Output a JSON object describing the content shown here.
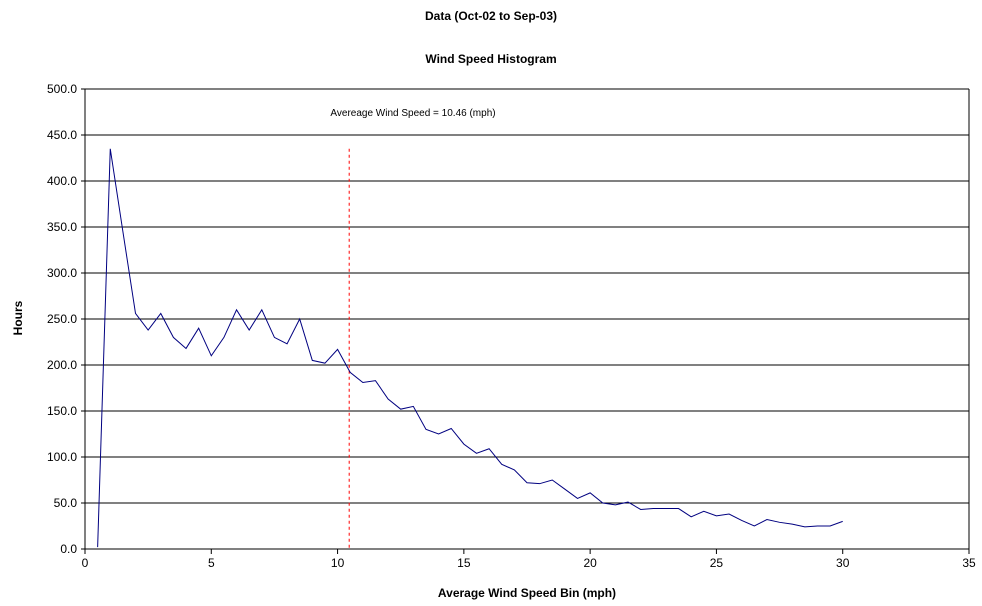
{
  "chart_data": {
    "type": "line",
    "title": "Data (Oct-02 to Sep-03)",
    "subtitle": "Wind Speed Histogram",
    "xlabel": "Average Wind Speed Bin (mph)",
    "ylabel": "Hours",
    "xlim": [
      0,
      35
    ],
    "ylim": [
      0,
      500
    ],
    "x_ticks": [
      "0",
      "5",
      "10",
      "15",
      "20",
      "25",
      "30",
      "35"
    ],
    "y_ticks": [
      "0.0",
      "50.0",
      "100.0",
      "150.0",
      "200.0",
      "250.0",
      "300.0",
      "350.0",
      "400.0",
      "450.0",
      "500.0"
    ],
    "grid": "horizontal",
    "series": [
      {
        "color": "#000080",
        "x": [
          0.5,
          1.0,
          1.5,
          2.0,
          2.5,
          3.0,
          3.5,
          4.0,
          4.5,
          5.0,
          5.5,
          6.0,
          6.5,
          7.0,
          7.5,
          8.0,
          8.5,
          9.0,
          9.5,
          10.0,
          10.5,
          11.0,
          11.5,
          12.0,
          12.5,
          13.0,
          13.5,
          14.0,
          14.5,
          15.0,
          15.5,
          16.0,
          16.5,
          17.0,
          17.5,
          18.0,
          18.5,
          19.0,
          19.5,
          20.0,
          20.5,
          21.0,
          21.5,
          22.0,
          22.5,
          23.0,
          23.5,
          24.0,
          24.5,
          25.0,
          25.5,
          26.0,
          26.5,
          27.0,
          27.5,
          28.0,
          28.5,
          29.0,
          29.5,
          30.0
        ],
        "values": [
          2,
          435,
          345,
          256,
          238,
          256,
          230,
          218,
          240,
          210,
          230,
          260,
          238,
          260,
          230,
          223,
          250,
          205,
          202,
          217,
          192,
          181,
          183,
          163,
          152,
          155,
          130,
          125,
          131,
          114,
          104,
          109,
          92,
          86,
          72,
          71,
          75,
          65,
          55,
          61,
          50,
          48,
          51,
          43,
          44,
          44,
          44,
          35,
          41,
          36,
          38,
          31,
          25,
          32,
          29,
          27,
          24,
          25,
          25,
          30
        ]
      }
    ],
    "reference_line": {
      "x": 10.46,
      "color": "#ff0000",
      "style": "dashed"
    },
    "annotation": "Avereage Wind Speed = 10.46 (mph)"
  }
}
